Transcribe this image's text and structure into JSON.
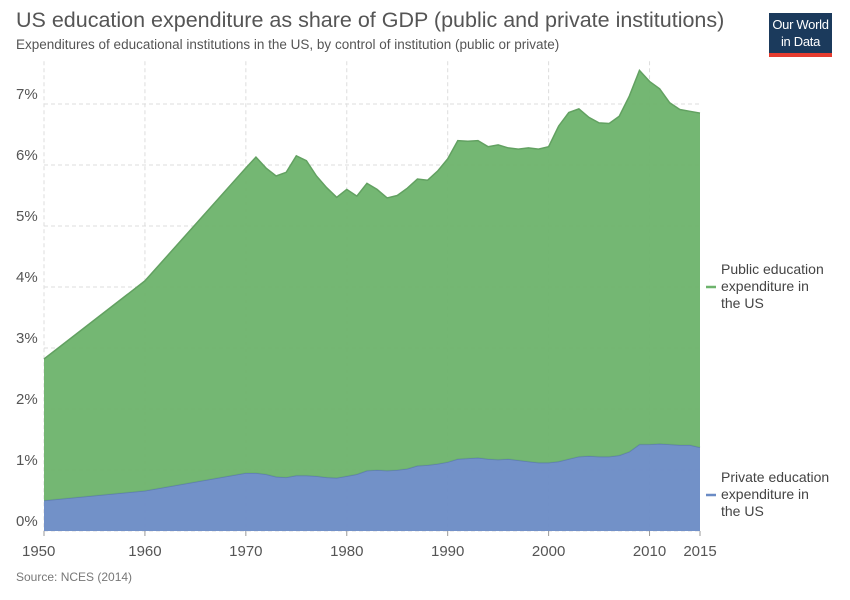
{
  "header": {
    "title": "US education expenditure as share of GDP (public and private institutions)",
    "subtitle": "Expenditures of educational institutions in the US, by control of institution (public or private)"
  },
  "logo": {
    "line1": "Our World",
    "line2": "in Data"
  },
  "footer": {
    "source": "Source: NCES (2014)"
  },
  "colors": {
    "public": "#6db36c",
    "private": "#6a8bc5",
    "grid": "#dddddd"
  },
  "chart_data": {
    "type": "area",
    "stacked": true,
    "title": "US education expenditure as share of GDP (public and private institutions)",
    "subtitle": "Expenditures of educational institutions in the US, by control of institution (public or private)",
    "xlim": [
      1950,
      2015
    ],
    "ylim": [
      0,
      7.7
    ],
    "x_ticks": [
      1950,
      1960,
      1970,
      1980,
      1990,
      2000,
      2010,
      2015
    ],
    "y_ticks": [
      {
        "value": 0,
        "label": "0%"
      },
      {
        "value": 1,
        "label": "1%"
      },
      {
        "value": 2,
        "label": "2%"
      },
      {
        "value": 3,
        "label": "3%"
      },
      {
        "value": 4,
        "label": "4%"
      },
      {
        "value": 5,
        "label": "5%"
      },
      {
        "value": 6,
        "label": "6%"
      },
      {
        "value": 7,
        "label": "7%"
      }
    ],
    "grid": true,
    "legend_placement": "right",
    "series": [
      {
        "name": "Private education expenditure in the US",
        "color": "#6a8bc5",
        "points": [
          [
            1950,
            0.5
          ],
          [
            1960,
            0.66
          ],
          [
            1970,
            0.95
          ],
          [
            1971,
            0.95
          ],
          [
            1972,
            0.93
          ],
          [
            1973,
            0.89
          ],
          [
            1974,
            0.88
          ],
          [
            1975,
            0.91
          ],
          [
            1976,
            0.91
          ],
          [
            1977,
            0.9
          ],
          [
            1978,
            0.88
          ],
          [
            1979,
            0.87
          ],
          [
            1980,
            0.9
          ],
          [
            1981,
            0.93
          ],
          [
            1982,
            0.99
          ],
          [
            1983,
            1.0
          ],
          [
            1984,
            0.99
          ],
          [
            1985,
            1.0
          ],
          [
            1986,
            1.02
          ],
          [
            1987,
            1.07
          ],
          [
            1988,
            1.08
          ],
          [
            1989,
            1.1
          ],
          [
            1990,
            1.13
          ],
          [
            1991,
            1.18
          ],
          [
            1992,
            1.19
          ],
          [
            1993,
            1.2
          ],
          [
            1994,
            1.18
          ],
          [
            1995,
            1.17
          ],
          [
            1996,
            1.18
          ],
          [
            1997,
            1.16
          ],
          [
            1998,
            1.14
          ],
          [
            1999,
            1.12
          ],
          [
            2000,
            1.12
          ],
          [
            2001,
            1.14
          ],
          [
            2002,
            1.18
          ],
          [
            2003,
            1.22
          ],
          [
            2004,
            1.23
          ],
          [
            2005,
            1.22
          ],
          [
            2006,
            1.22
          ],
          [
            2007,
            1.24
          ],
          [
            2008,
            1.3
          ],
          [
            2009,
            1.42
          ],
          [
            2010,
            1.42
          ],
          [
            2011,
            1.43
          ],
          [
            2012,
            1.42
          ],
          [
            2013,
            1.41
          ],
          [
            2014,
            1.41
          ],
          [
            2015,
            1.37
          ]
        ]
      },
      {
        "name": "Public education expenditure in the US",
        "color": "#6db36c",
        "points": [
          [
            1950,
            2.32
          ],
          [
            1960,
            3.44
          ],
          [
            1970,
            5.0
          ],
          [
            1971,
            5.18
          ],
          [
            1972,
            5.02
          ],
          [
            1973,
            4.93
          ],
          [
            1974,
            5.0
          ],
          [
            1975,
            5.24
          ],
          [
            1976,
            5.16
          ],
          [
            1977,
            4.92
          ],
          [
            1978,
            4.75
          ],
          [
            1979,
            4.6
          ],
          [
            1980,
            4.7
          ],
          [
            1981,
            4.56
          ],
          [
            1982,
            4.71
          ],
          [
            1983,
            4.6
          ],
          [
            1984,
            4.47
          ],
          [
            1985,
            4.5
          ],
          [
            1986,
            4.6
          ],
          [
            1987,
            4.7
          ],
          [
            1988,
            4.67
          ],
          [
            1989,
            4.8
          ],
          [
            1990,
            4.97
          ],
          [
            1991,
            5.22
          ],
          [
            1992,
            5.2
          ],
          [
            1993,
            5.2
          ],
          [
            1994,
            5.12
          ],
          [
            1995,
            5.16
          ],
          [
            1996,
            5.1
          ],
          [
            1997,
            5.1
          ],
          [
            1998,
            5.14
          ],
          [
            1999,
            5.14
          ],
          [
            2000,
            5.18
          ],
          [
            2001,
            5.5
          ],
          [
            2002,
            5.68
          ],
          [
            2003,
            5.7
          ],
          [
            2004,
            5.55
          ],
          [
            2005,
            5.47
          ],
          [
            2006,
            5.46
          ],
          [
            2007,
            5.56
          ],
          [
            2008,
            5.83
          ],
          [
            2009,
            6.13
          ],
          [
            2010,
            5.95
          ],
          [
            2011,
            5.82
          ],
          [
            2012,
            5.6
          ],
          [
            2013,
            5.5
          ],
          [
            2014,
            5.47
          ],
          [
            2015,
            5.48
          ]
        ]
      }
    ]
  }
}
